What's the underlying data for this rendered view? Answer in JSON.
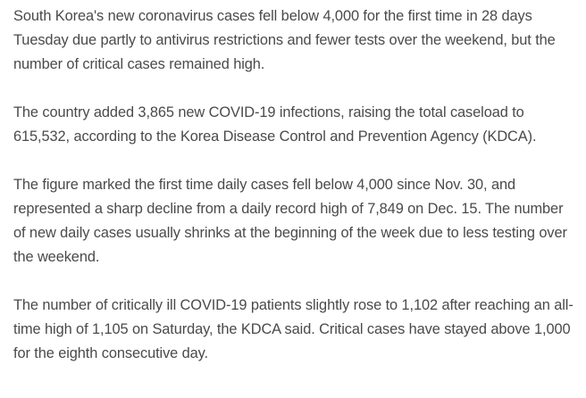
{
  "article": {
    "paragraphs": [
      "South Korea's new coronavirus cases fell below 4,000 for the first time in 28 days Tuesday due partly to antivirus restrictions and fewer tests over the weekend, but the number of critical cases remained high.",
      "The country added 3,865 new COVID-19 infections, raising the total caseload to 615,532, according to the Korea Disease Control and Prevention Agency (KDCA).",
      "The figure marked the first time daily cases fell below 4,000 since Nov. 30, and represented a sharp decline from a daily record high of 7,849 on Dec. 15. The number of new daily cases usually shrinks at the beginning of the week due to less testing over the weekend.",
      "The number of critically ill COVID-19 patients slightly rose to 1,102 after reaching an all-time high of 1,105 on Saturday, the KDCA said. Critical cases have stayed above 1,000 for the eighth consecutive day."
    ]
  },
  "colors": {
    "text": "#4a4a4a",
    "background": "#ffffff"
  }
}
